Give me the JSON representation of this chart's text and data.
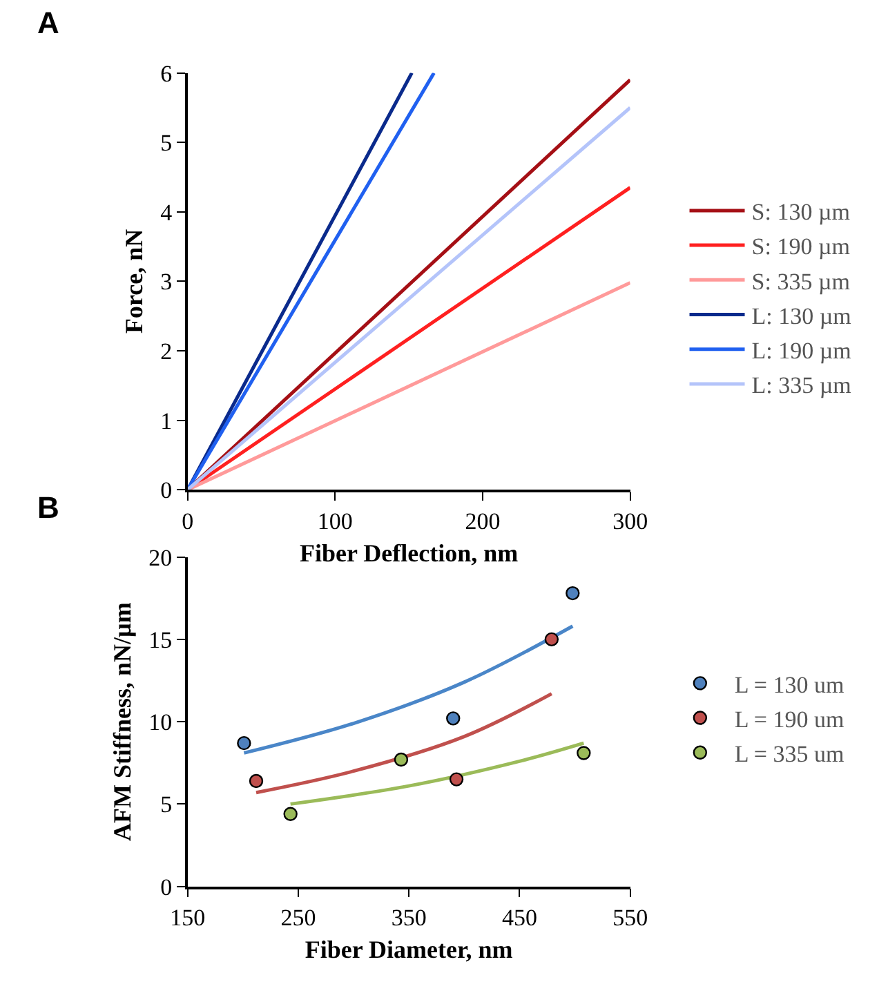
{
  "chart_data": [
    {
      "type": "line",
      "title": "A",
      "xlabel": "Fiber Deflection, nm",
      "ylabel": "Force, nN",
      "xlim": [
        0,
        300
      ],
      "xticks": [
        0,
        100,
        200,
        300
      ],
      "ylim": [
        0,
        6
      ],
      "yticks": [
        0,
        1,
        2,
        3,
        4,
        5,
        6
      ],
      "legend": "right",
      "marker": "none",
      "series": [
        {
          "name": "S: 130 µm",
          "color": "#a50f15",
          "x": [
            0,
            300
          ],
          "values": [
            0,
            5.9
          ]
        },
        {
          "name": "S: 190 µm",
          "color": "#ff2020",
          "x": [
            0,
            300
          ],
          "values": [
            0,
            4.35
          ]
        },
        {
          "name": "S: 335 µm",
          "color": "#ff9a9a",
          "x": [
            0,
            300
          ],
          "values": [
            0,
            2.98
          ]
        },
        {
          "name": "L: 130 µm",
          "color": "#0a2a8c",
          "x": [
            0,
            152
          ],
          "values": [
            0,
            6
          ]
        },
        {
          "name": "L: 190 µm",
          "color": "#2060f0",
          "x": [
            0,
            167
          ],
          "values": [
            0,
            6
          ]
        },
        {
          "name": "L: 335 µm",
          "color": "#b4c4fa",
          "x": [
            0,
            300
          ],
          "values": [
            0,
            5.5
          ]
        }
      ]
    },
    {
      "type": "scatter",
      "title": "B",
      "xlabel": "Fiber Diameter, nm",
      "ylabel": "AFM Stiffness, nN/µm",
      "xlim": [
        150,
        550
      ],
      "xticks": [
        150,
        250,
        350,
        450,
        550
      ],
      "ylim": [
        0,
        20
      ],
      "yticks": [
        0,
        5,
        10,
        15,
        20
      ],
      "legend": "right",
      "marker": "circle",
      "series": [
        {
          "type": "line",
          "marker": "none",
          "color": "#4a86c8",
          "x": [
            201,
            300,
            400,
            498
          ],
          "values": [
            8.1,
            9.9,
            12.4,
            15.8
          ]
        },
        {
          "type": "line",
          "marker": "none",
          "color": "#c0504d",
          "x": [
            212,
            300,
            400,
            479
          ],
          "values": [
            5.7,
            7.0,
            9.1,
            11.7
          ]
        },
        {
          "type": "line",
          "marker": "none",
          "color": "#9bbb59",
          "x": [
            243,
            350,
            450,
            508
          ],
          "values": [
            5.0,
            6.1,
            7.6,
            8.7
          ]
        },
        {
          "name": "L = 130 um",
          "color": "#4f81bd",
          "x": [
            201,
            390,
            498
          ],
          "values": [
            8.7,
            10.2,
            17.8
          ]
        },
        {
          "name": "L = 190 um",
          "color": "#c0504d",
          "x": [
            212,
            393,
            479
          ],
          "values": [
            6.4,
            6.5,
            15.0
          ]
        },
        {
          "name": "L = 335 um",
          "color": "#9bbb59",
          "x": [
            243,
            343,
            508
          ],
          "values": [
            4.4,
            7.7,
            8.1
          ]
        }
      ]
    }
  ]
}
